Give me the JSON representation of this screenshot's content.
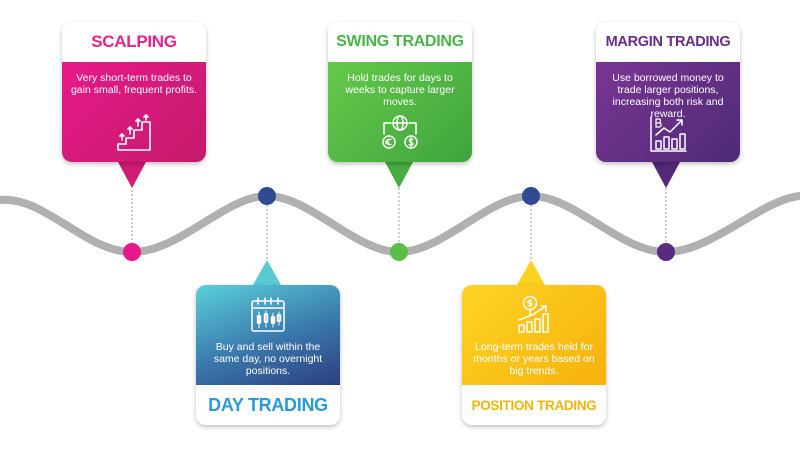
{
  "cards": {
    "scalping": {
      "title": "SCALPING",
      "description": "Very short-term trades to gain small, frequent profits.",
      "icon": "stairs-arrows-icon",
      "color": "#E7198A"
    },
    "swing": {
      "title": "SWING TRADING",
      "description": "Hold trades for days to weeks to capture larger moves.",
      "icon": "globe-currency-icon",
      "color": "#52B848"
    },
    "margin": {
      "title": "MARGIN TRADING",
      "description": "Use borrowed money to trade larger positions, increasing both risk and reward.",
      "icon": "bitcoin-growth-chart-icon",
      "color": "#6A2C86"
    },
    "day": {
      "title": "DAY TRADING",
      "description": "Buy and sell within the same day, no overnight positions.",
      "icon": "calendar-candlestick-icon",
      "color": "#3A9BD8"
    },
    "position": {
      "title": "POSITION TRADING",
      "description": "Long-term trades held for months or years based on big trends.",
      "icon": "coin-bar-chart-icon",
      "color": "#F7B80F"
    }
  },
  "line_color": "#B0B0B0"
}
